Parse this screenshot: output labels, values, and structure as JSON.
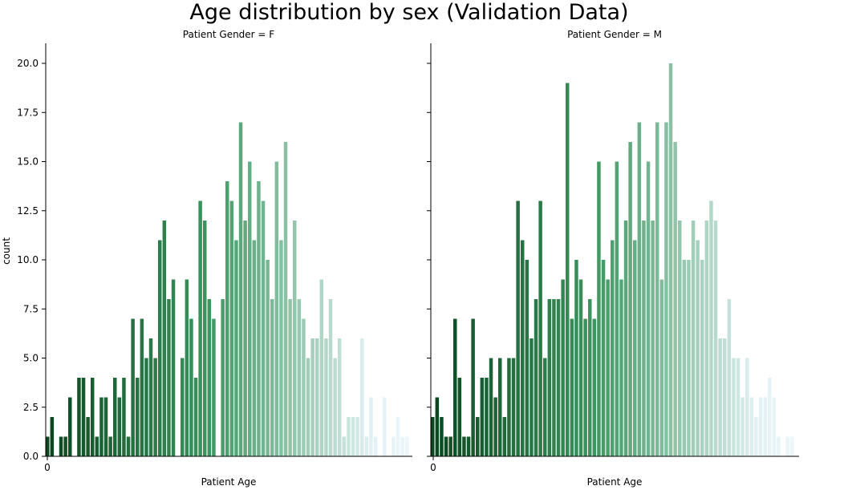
{
  "chart_data": {
    "type": "bar",
    "title": "Age distribution by sex (Validation Data)",
    "ylabel": "count",
    "xlabel": "Patient Age",
    "ylim": [
      0,
      21
    ],
    "yticks": [
      "0.0",
      "2.5",
      "5.0",
      "7.5",
      "10.0",
      "12.5",
      "15.0",
      "17.5",
      "20.0"
    ],
    "xtick_label": "0",
    "grid": false,
    "color_scheme": "dark-green-to-light-blue gradient across bars",
    "panels": [
      {
        "subtitle": "Patient Gender = F",
        "values": [
          1,
          2,
          0,
          1,
          1,
          3,
          0,
          4,
          4,
          2,
          4,
          1,
          3,
          3,
          1,
          4,
          3,
          4,
          1,
          7,
          4,
          7,
          5,
          6,
          5,
          11,
          12,
          8,
          9,
          0,
          5,
          9,
          7,
          4,
          13,
          12,
          8,
          7,
          0,
          8,
          14,
          13,
          11,
          17,
          12,
          15,
          11,
          14,
          13,
          10,
          8,
          15,
          11,
          16,
          8,
          12,
          8,
          7,
          5,
          6,
          6,
          9,
          6,
          8,
          5,
          6,
          1,
          2,
          2,
          2,
          6,
          1,
          3,
          1,
          0,
          3,
          0,
          1,
          2,
          1,
          1
        ]
      },
      {
        "subtitle": "Patient Gender = M",
        "values": [
          2,
          3,
          2,
          1,
          1,
          7,
          4,
          1,
          1,
          7,
          2,
          4,
          4,
          5,
          3,
          5,
          2,
          5,
          5,
          13,
          11,
          10,
          6,
          8,
          13,
          5,
          8,
          8,
          8,
          9,
          19,
          7,
          10,
          9,
          7,
          8,
          7,
          15,
          10,
          9,
          11,
          15,
          9,
          12,
          16,
          11,
          17,
          12,
          15,
          12,
          17,
          9,
          17,
          20,
          16,
          12,
          10,
          10,
          12,
          11,
          10,
          12,
          13,
          12,
          6,
          6,
          8,
          5,
          5,
          3,
          5,
          3,
          2,
          3,
          3,
          4,
          3,
          1,
          0,
          1,
          1
        ]
      }
    ]
  }
}
